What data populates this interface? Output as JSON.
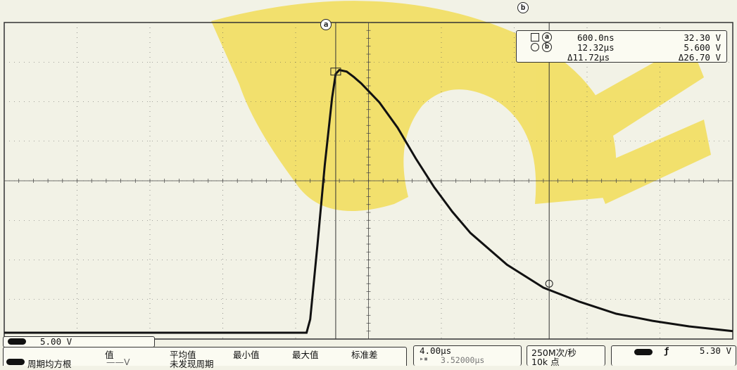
{
  "cursors": {
    "a_label": "a",
    "b_label": "b",
    "readout": {
      "row_a": {
        "marker": "a",
        "time": "600.0ns",
        "volt": "32.30 V"
      },
      "row_b": {
        "marker": "b",
        "time": "12.32µs",
        "volt": "5.600 V"
      },
      "row_delta": {
        "time": "Δ11.72µs",
        "volt": "Δ26.70 V"
      }
    }
  },
  "channel": {
    "scale": "5.00 V",
    "color": "#111111"
  },
  "measurements": {
    "headers": [
      "值",
      "平均值",
      "最小值",
      "最大值",
      "标准差"
    ],
    "row_label": "周期均方根",
    "value": "——V",
    "status": "未发现周期"
  },
  "timebase": {
    "scale": "4.00µs",
    "position": "3.52000µs"
  },
  "acquisition": {
    "rate": "250M次/秒",
    "points": "10k 点"
  },
  "trigger": {
    "level": "5.30 V"
  },
  "chart_data": {
    "type": "line",
    "title": "",
    "xlabel": "",
    "ylabel": "",
    "xlim_us": [
      -17.6,
      22.4
    ],
    "ylim_V": [
      -20,
      20
    ],
    "grid": true,
    "series": [
      {
        "x_us": [
          -17.6,
          -1.0,
          -0.8,
          -0.4,
          0.0,
          0.4,
          0.6,
          0.8,
          1.2,
          1.6,
          2.0,
          3.0,
          4.0,
          5.0,
          6.0,
          7.0,
          8.0,
          10.0,
          12.0,
          14.0,
          16.0,
          18.0,
          20.0,
          22.4
        ],
        "y_V": [
          -19.2,
          -19.2,
          -17.5,
          -8.0,
          2.0,
          10.5,
          13.5,
          14.0,
          13.8,
          13.1,
          12.3,
          9.9,
          6.7,
          2.8,
          -0.8,
          -3.9,
          -6.6,
          -10.6,
          -13.5,
          -15.3,
          -16.8,
          -17.7,
          -18.4,
          -19.0
        ]
      }
    ]
  }
}
